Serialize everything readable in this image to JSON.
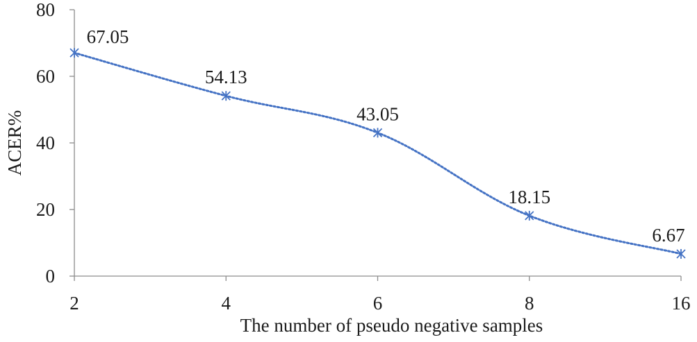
{
  "chart_data": {
    "type": "line",
    "title": "",
    "xlabel": "The number of pseudo negative samples",
    "ylabel": "ACER%",
    "categories": [
      "2",
      "4",
      "6",
      "8",
      "16"
    ],
    "series": [
      {
        "name": "ACER%",
        "values": [
          67.05,
          54.13,
          43.05,
          18.15,
          6.67
        ],
        "data_labels": [
          "67.05",
          "54.13",
          "43.05",
          "18.15",
          "6.67"
        ],
        "color": "#4472C4",
        "line_style": "dotted",
        "marker": "asterisk"
      }
    ],
    "ylim": [
      0,
      80
    ],
    "yticks": [
      0,
      20,
      40,
      60,
      80
    ],
    "ytick_labels": [
      "0",
      "20",
      "40",
      "60",
      "80"
    ],
    "grid": false,
    "legend": "none"
  }
}
